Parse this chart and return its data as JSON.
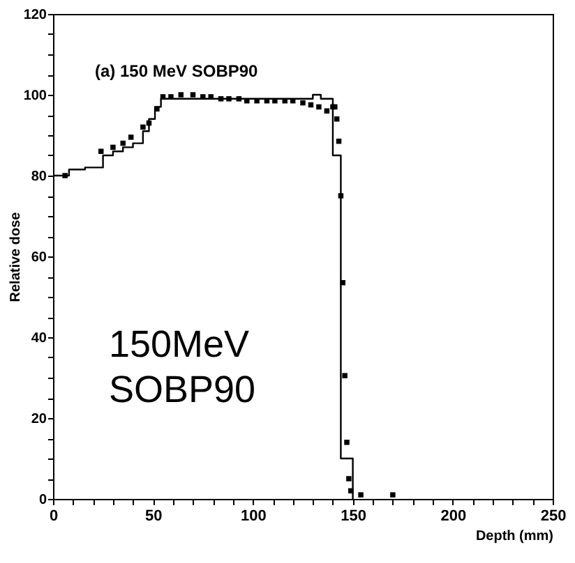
{
  "chart_data": {
    "type": "scatter",
    "xlabel": "Depth (mm)",
    "ylabel": "Relative dose",
    "annotations": [
      "(a) 150 MeV SOBP90",
      "150MeV SOBP90"
    ],
    "xlim": [
      0,
      250
    ],
    "ylim": [
      0,
      120
    ],
    "xticks": [
      0,
      {
        "value": 10,
        "label": null
      },
      {
        "value": 20,
        "label": null
      },
      {
        "value": 30,
        "label": null
      },
      {
        "value": 40,
        "label": null
      },
      50,
      {
        "value": 60,
        "label": null
      },
      {
        "value": 70,
        "label": null
      },
      {
        "value": 80,
        "label": null
      },
      {
        "value": 90,
        "label": null
      },
      100,
      {
        "value": 110,
        "label": null
      },
      {
        "value": 120,
        "label": null
      },
      {
        "value": 130,
        "label": null
      },
      {
        "value": 140,
        "label": null
      },
      150,
      {
        "value": 160,
        "label": null
      },
      {
        "value": 170,
        "label": null
      },
      {
        "value": 180,
        "label": null
      },
      {
        "value": 190,
        "label": null
      },
      200,
      {
        "value": 210,
        "label": null
      },
      {
        "value": 220,
        "label": null
      },
      {
        "value": 230,
        "label": null
      },
      {
        "value": 240,
        "label": null
      },
      250
    ],
    "yticks": [
      0,
      {
        "value": 5,
        "label": null
      },
      {
        "value": 10,
        "label": null
      },
      {
        "value": 15,
        "label": null
      },
      20,
      {
        "value": 25,
        "label": null
      },
      {
        "value": 30,
        "label": null
      },
      {
        "value": 35,
        "label": null
      },
      40,
      {
        "value": 45,
        "label": null
      },
      {
        "value": 50,
        "label": null
      },
      {
        "value": 55,
        "label": null
      },
      60,
      {
        "value": 65,
        "label": null
      },
      {
        "value": 70,
        "label": null
      },
      {
        "value": 75,
        "label": null
      },
      80,
      {
        "value": 85,
        "label": null
      },
      {
        "value": 90,
        "label": null
      },
      {
        "value": 95,
        "label": null
      },
      100,
      {
        "value": 105,
        "label": null
      },
      {
        "value": 110,
        "label": null
      },
      {
        "value": 115,
        "label": null
      },
      120
    ],
    "grid": false,
    "marker": "square",
    "series": [
      {
        "type": "step",
        "marker": "none",
        "color": "#000000",
        "x": [
          0,
          8,
          16,
          25,
          30,
          35,
          40,
          45,
          48,
          51,
          54,
          60,
          130,
          134,
          140,
          144,
          150
        ],
        "values": [
          80,
          81.5,
          82,
          85,
          86,
          87,
          88,
          91,
          94,
          97,
          99,
          99,
          100,
          99,
          85,
          10,
          0
        ]
      },
      {
        "color": "#000000",
        "x": [
          6,
          24,
          30,
          35,
          39,
          45,
          48,
          52,
          55,
          59,
          64,
          70,
          75,
          79,
          84,
          88,
          93,
          97,
          102,
          107,
          111,
          116,
          120,
          125,
          129,
          133,
          137,
          140,
          141,
          142,
          143,
          144,
          145,
          146,
          147,
          148,
          149,
          154,
          170
        ],
        "values": [
          80,
          86,
          87,
          88,
          89.5,
          92,
          93,
          96.5,
          99.5,
          99.5,
          100,
          100,
          99.5,
          99.5,
          99,
          99,
          99,
          98.5,
          98.5,
          98.5,
          98.5,
          98.5,
          98.5,
          98,
          97.5,
          97,
          96,
          97,
          97,
          94,
          88.5,
          75,
          53.5,
          30.5,
          14,
          5,
          2,
          1,
          1
        ]
      }
    ]
  }
}
